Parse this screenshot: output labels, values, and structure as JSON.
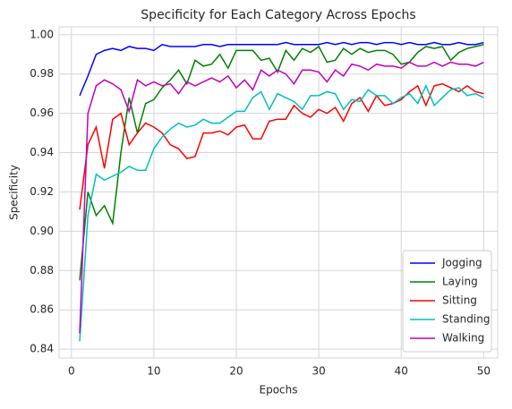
{
  "chart_data": {
    "type": "line",
    "title": "Specificity for Each Category Across Epochs",
    "x_label": "Epochs",
    "y_label": "Specificity",
    "x": [
      1,
      2,
      3,
      4,
      5,
      6,
      7,
      8,
      9,
      10,
      11,
      12,
      13,
      14,
      15,
      16,
      17,
      18,
      19,
      20,
      21,
      22,
      23,
      24,
      25,
      26,
      27,
      28,
      29,
      30,
      31,
      32,
      33,
      34,
      35,
      36,
      37,
      38,
      39,
      40,
      41,
      42,
      43,
      44,
      45,
      46,
      47,
      48,
      49,
      50
    ],
    "series": [
      {
        "name": "Jogging",
        "color": "#0000ff",
        "values": [
          0.969,
          0.979,
          0.99,
          0.992,
          0.993,
          0.992,
          0.994,
          0.993,
          0.993,
          0.992,
          0.995,
          0.994,
          0.994,
          0.994,
          0.994,
          0.995,
          0.995,
          0.994,
          0.995,
          0.995,
          0.995,
          0.995,
          0.995,
          0.995,
          0.995,
          0.996,
          0.995,
          0.995,
          0.995,
          0.995,
          0.996,
          0.995,
          0.996,
          0.995,
          0.996,
          0.996,
          0.995,
          0.996,
          0.996,
          0.995,
          0.996,
          0.995,
          0.995,
          0.996,
          0.995,
          0.995,
          0.996,
          0.995,
          0.995,
          0.996
        ]
      },
      {
        "name": "Laying",
        "color": "#008000",
        "values": [
          0.875,
          0.92,
          0.908,
          0.913,
          0.904,
          0.94,
          0.968,
          0.95,
          0.965,
          0.967,
          0.973,
          0.977,
          0.982,
          0.975,
          0.987,
          0.984,
          0.985,
          0.99,
          0.983,
          0.992,
          0.992,
          0.992,
          0.987,
          0.988,
          0.981,
          0.992,
          0.987,
          0.993,
          0.991,
          0.994,
          0.986,
          0.987,
          0.993,
          0.99,
          0.993,
          0.991,
          0.992,
          0.992,
          0.99,
          0.985,
          0.986,
          0.991,
          0.994,
          0.993,
          0.994,
          0.987,
          0.991,
          0.993,
          0.994,
          0.995
        ]
      },
      {
        "name": "Sitting",
        "color": "#ff0000",
        "values": [
          0.911,
          0.944,
          0.953,
          0.932,
          0.957,
          0.96,
          0.944,
          0.95,
          0.955,
          0.953,
          0.95,
          0.944,
          0.942,
          0.937,
          0.938,
          0.95,
          0.95,
          0.951,
          0.949,
          0.953,
          0.954,
          0.947,
          0.947,
          0.956,
          0.957,
          0.957,
          0.964,
          0.96,
          0.958,
          0.962,
          0.96,
          0.963,
          0.956,
          0.965,
          0.968,
          0.961,
          0.969,
          0.964,
          0.965,
          0.967,
          0.971,
          0.974,
          0.964,
          0.974,
          0.975,
          0.973,
          0.971,
          0.974,
          0.971,
          0.97
        ]
      },
      {
        "name": "Standing",
        "color": "#00bfbf",
        "values": [
          0.844,
          0.908,
          0.929,
          0.926,
          0.928,
          0.93,
          0.933,
          0.931,
          0.931,
          0.942,
          0.948,
          0.952,
          0.955,
          0.953,
          0.954,
          0.957,
          0.955,
          0.955,
          0.958,
          0.961,
          0.961,
          0.968,
          0.971,
          0.962,
          0.97,
          0.968,
          0.966,
          0.962,
          0.969,
          0.969,
          0.971,
          0.97,
          0.962,
          0.967,
          0.966,
          0.972,
          0.969,
          0.969,
          0.965,
          0.968,
          0.97,
          0.965,
          0.974,
          0.964,
          0.968,
          0.972,
          0.973,
          0.969,
          0.97,
          0.968
        ]
      },
      {
        "name": "Walking",
        "color": "#bf00bf",
        "values": [
          0.848,
          0.96,
          0.974,
          0.977,
          0.975,
          0.972,
          0.961,
          0.977,
          0.974,
          0.976,
          0.974,
          0.975,
          0.97,
          0.976,
          0.974,
          0.976,
          0.978,
          0.976,
          0.979,
          0.973,
          0.977,
          0.972,
          0.982,
          0.979,
          0.982,
          0.98,
          0.975,
          0.982,
          0.982,
          0.981,
          0.976,
          0.982,
          0.979,
          0.985,
          0.984,
          0.982,
          0.985,
          0.984,
          0.984,
          0.983,
          0.986,
          0.984,
          0.984,
          0.986,
          0.984,
          0.986,
          0.985,
          0.985,
          0.984,
          0.986
        ]
      }
    ],
    "xlim": [
      -1.5,
      51.7
    ],
    "ylim": [
      0.8355,
      1.004
    ],
    "xticks": [
      0,
      10,
      20,
      30,
      40,
      50
    ],
    "yticks": [
      0.84,
      0.86,
      0.88,
      {
        "value": 0.9,
        "label": "0.90"
      },
      0.92,
      0.94,
      0.96,
      0.98,
      {
        "value": 1,
        "label": "1.00"
      }
    ],
    "grid": true,
    "legend": "lower right"
  }
}
